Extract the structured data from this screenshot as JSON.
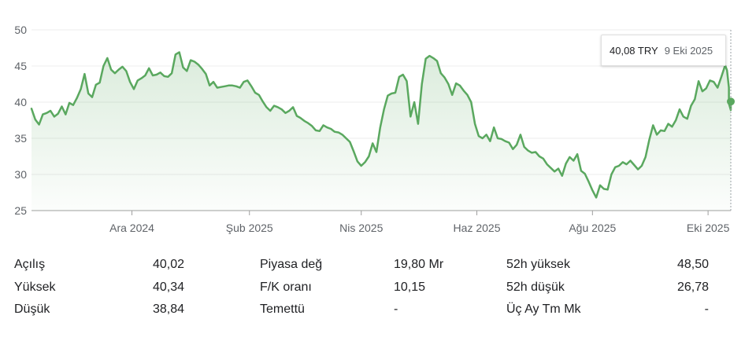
{
  "chart_data": {
    "type": "area",
    "currency": "TRY",
    "yticks": [
      25,
      30,
      35,
      40,
      45,
      50
    ],
    "ylim": [
      25,
      50
    ],
    "xticks": [
      "Ara 2024",
      "Şub 2025",
      "Nis 2025",
      "Haz 2025",
      "Ağu 2025",
      "Eki 2025"
    ],
    "xtick_dates": [
      "2024-12-01",
      "2025-02-01",
      "2025-04-01",
      "2025-06-01",
      "2025-08-01",
      "2025-10-01"
    ],
    "x_range": [
      "2024-10-09",
      "2025-10-13"
    ],
    "line_color": "#5aa85f",
    "grid": true,
    "series": [
      {
        "points": [
          [
            "2024-10-09",
            39.1
          ],
          [
            "2024-10-11",
            37.6
          ],
          [
            "2024-10-13",
            36.9
          ],
          [
            "2024-10-15",
            38.3
          ],
          [
            "2024-10-17",
            38.5
          ],
          [
            "2024-10-19",
            38.8
          ],
          [
            "2024-10-21",
            38.0
          ],
          [
            "2024-10-23",
            38.4
          ],
          [
            "2024-10-25",
            39.4
          ],
          [
            "2024-10-27",
            38.3
          ],
          [
            "2024-10-29",
            39.9
          ],
          [
            "2024-10-31",
            39.6
          ],
          [
            "2024-11-02",
            40.6
          ],
          [
            "2024-11-04",
            41.8
          ],
          [
            "2024-11-06",
            43.9
          ],
          [
            "2024-11-08",
            41.2
          ],
          [
            "2024-11-10",
            40.7
          ],
          [
            "2024-11-12",
            42.4
          ],
          [
            "2024-11-14",
            42.7
          ],
          [
            "2024-11-16",
            45.0
          ],
          [
            "2024-11-18",
            46.1
          ],
          [
            "2024-11-20",
            44.5
          ],
          [
            "2024-11-22",
            44.0
          ],
          [
            "2024-11-24",
            44.5
          ],
          [
            "2024-11-26",
            44.9
          ],
          [
            "2024-11-28",
            44.3
          ],
          [
            "2024-11-30",
            42.8
          ],
          [
            "2024-12-02",
            41.8
          ],
          [
            "2024-12-04",
            43.0
          ],
          [
            "2024-12-06",
            43.3
          ],
          [
            "2024-12-08",
            43.7
          ],
          [
            "2024-12-10",
            44.7
          ],
          [
            "2024-12-12",
            43.7
          ],
          [
            "2024-12-14",
            43.8
          ],
          [
            "2024-12-16",
            44.1
          ],
          [
            "2024-12-18",
            43.6
          ],
          [
            "2024-12-20",
            43.5
          ],
          [
            "2024-12-22",
            44.0
          ],
          [
            "2024-12-24",
            46.6
          ],
          [
            "2024-12-26",
            46.9
          ],
          [
            "2024-12-28",
            44.8
          ],
          [
            "2024-12-30",
            44.3
          ],
          [
            "2025-01-01",
            45.8
          ],
          [
            "2025-01-03",
            45.6
          ],
          [
            "2025-01-05",
            45.2
          ],
          [
            "2025-01-07",
            44.6
          ],
          [
            "2025-01-09",
            43.9
          ],
          [
            "2025-01-11",
            42.3
          ],
          [
            "2025-01-13",
            42.8
          ],
          [
            "2025-01-15",
            42.0
          ],
          [
            "2025-01-17",
            42.1
          ],
          [
            "2025-01-19",
            42.2
          ],
          [
            "2025-01-21",
            42.3
          ],
          [
            "2025-01-23",
            42.3
          ],
          [
            "2025-01-25",
            42.2
          ],
          [
            "2025-01-27",
            42.0
          ],
          [
            "2025-01-29",
            42.8
          ],
          [
            "2025-01-31",
            43.0
          ],
          [
            "2025-02-02",
            42.2
          ],
          [
            "2025-02-04",
            41.3
          ],
          [
            "2025-02-06",
            41.0
          ],
          [
            "2025-02-08",
            40.1
          ],
          [
            "2025-02-10",
            39.3
          ],
          [
            "2025-02-12",
            38.8
          ],
          [
            "2025-02-14",
            39.5
          ],
          [
            "2025-02-16",
            39.3
          ],
          [
            "2025-02-18",
            39.0
          ],
          [
            "2025-02-20",
            38.5
          ],
          [
            "2025-02-22",
            38.8
          ],
          [
            "2025-02-24",
            39.3
          ],
          [
            "2025-02-26",
            38.1
          ],
          [
            "2025-02-28",
            37.8
          ],
          [
            "2025-03-02",
            37.4
          ],
          [
            "2025-03-04",
            37.1
          ],
          [
            "2025-03-06",
            36.7
          ],
          [
            "2025-03-08",
            36.1
          ],
          [
            "2025-03-10",
            36.0
          ],
          [
            "2025-03-12",
            36.8
          ],
          [
            "2025-03-14",
            36.5
          ],
          [
            "2025-03-16",
            36.3
          ],
          [
            "2025-03-18",
            35.9
          ],
          [
            "2025-03-20",
            35.8
          ],
          [
            "2025-03-22",
            35.5
          ],
          [
            "2025-03-24",
            35.0
          ],
          [
            "2025-03-26",
            34.5
          ],
          [
            "2025-03-28",
            33.2
          ],
          [
            "2025-03-30",
            31.8
          ],
          [
            "2025-04-01",
            31.2
          ],
          [
            "2025-04-03",
            31.7
          ],
          [
            "2025-04-05",
            32.5
          ],
          [
            "2025-04-07",
            34.3
          ],
          [
            "2025-04-09",
            33.1
          ],
          [
            "2025-04-11",
            36.5
          ],
          [
            "2025-04-13",
            39.0
          ],
          [
            "2025-04-15",
            40.9
          ],
          [
            "2025-04-17",
            41.2
          ],
          [
            "2025-04-19",
            41.3
          ],
          [
            "2025-04-21",
            43.5
          ],
          [
            "2025-04-23",
            43.8
          ],
          [
            "2025-04-25",
            42.9
          ],
          [
            "2025-04-27",
            38.0
          ],
          [
            "2025-04-29",
            40.0
          ],
          [
            "2025-05-01",
            37.0
          ],
          [
            "2025-05-03",
            42.5
          ],
          [
            "2025-05-05",
            46.0
          ],
          [
            "2025-05-07",
            46.4
          ],
          [
            "2025-05-09",
            46.1
          ],
          [
            "2025-05-11",
            45.7
          ],
          [
            "2025-05-13",
            44.0
          ],
          [
            "2025-05-15",
            43.4
          ],
          [
            "2025-05-17",
            42.5
          ],
          [
            "2025-05-19",
            41.0
          ],
          [
            "2025-05-21",
            42.6
          ],
          [
            "2025-05-23",
            42.3
          ],
          [
            "2025-05-25",
            41.6
          ],
          [
            "2025-05-27",
            41.0
          ],
          [
            "2025-05-29",
            40.0
          ],
          [
            "2025-05-31",
            37.0
          ],
          [
            "2025-06-02",
            35.3
          ],
          [
            "2025-06-04",
            35.0
          ],
          [
            "2025-06-06",
            35.5
          ],
          [
            "2025-06-08",
            34.6
          ],
          [
            "2025-06-10",
            36.5
          ],
          [
            "2025-06-12",
            35.0
          ],
          [
            "2025-06-14",
            34.9
          ],
          [
            "2025-06-16",
            34.6
          ],
          [
            "2025-06-18",
            34.4
          ],
          [
            "2025-06-20",
            33.5
          ],
          [
            "2025-06-22",
            34.1
          ],
          [
            "2025-06-24",
            35.5
          ],
          [
            "2025-06-26",
            33.8
          ],
          [
            "2025-06-28",
            33.3
          ],
          [
            "2025-06-30",
            33.0
          ],
          [
            "2025-07-02",
            33.1
          ],
          [
            "2025-07-04",
            32.5
          ],
          [
            "2025-07-06",
            32.2
          ],
          [
            "2025-07-08",
            31.4
          ],
          [
            "2025-07-10",
            30.9
          ],
          [
            "2025-07-12",
            30.4
          ],
          [
            "2025-07-14",
            30.8
          ],
          [
            "2025-07-16",
            29.8
          ],
          [
            "2025-07-18",
            31.5
          ],
          [
            "2025-07-20",
            32.4
          ],
          [
            "2025-07-22",
            31.9
          ],
          [
            "2025-07-24",
            32.8
          ],
          [
            "2025-07-26",
            30.5
          ],
          [
            "2025-07-28",
            30.1
          ],
          [
            "2025-07-30",
            29.0
          ],
          [
            "2025-08-01",
            27.8
          ],
          [
            "2025-08-03",
            26.8
          ],
          [
            "2025-08-05",
            28.5
          ],
          [
            "2025-08-07",
            28.0
          ],
          [
            "2025-08-09",
            27.9
          ],
          [
            "2025-08-11",
            30.0
          ],
          [
            "2025-08-13",
            31.0
          ],
          [
            "2025-08-15",
            31.2
          ],
          [
            "2025-08-17",
            31.7
          ],
          [
            "2025-08-19",
            31.4
          ],
          [
            "2025-08-21",
            31.9
          ],
          [
            "2025-08-23",
            31.3
          ],
          [
            "2025-08-25",
            30.7
          ],
          [
            "2025-08-27",
            31.2
          ],
          [
            "2025-08-29",
            32.4
          ],
          [
            "2025-08-31",
            34.8
          ],
          [
            "2025-09-02",
            36.8
          ],
          [
            "2025-09-04",
            35.5
          ],
          [
            "2025-09-06",
            36.1
          ],
          [
            "2025-09-08",
            36.0
          ],
          [
            "2025-09-10",
            37.0
          ],
          [
            "2025-09-12",
            36.6
          ],
          [
            "2025-09-14",
            37.5
          ],
          [
            "2025-09-16",
            39.0
          ],
          [
            "2025-09-18",
            38.0
          ],
          [
            "2025-09-20",
            37.7
          ],
          [
            "2025-09-22",
            39.5
          ],
          [
            "2025-09-24",
            40.4
          ],
          [
            "2025-09-26",
            42.9
          ],
          [
            "2025-09-28",
            41.5
          ],
          [
            "2025-09-30",
            41.9
          ],
          [
            "2025-10-02",
            43.0
          ],
          [
            "2025-10-04",
            42.8
          ],
          [
            "2025-10-06",
            42.0
          ],
          [
            "2025-10-08",
            43.5
          ],
          [
            "2025-10-10",
            45.1
          ],
          [
            "2025-10-11",
            44.4
          ],
          [
            "2025-10-12",
            42.0
          ],
          [
            "2025-10-12",
            39.8
          ],
          [
            "2025-10-13",
            38.9
          ],
          [
            "2025-10-13",
            40.08
          ]
        ]
      }
    ],
    "tooltip": {
      "price": "40,08 TRY",
      "date": "9 Eki 2025"
    }
  },
  "stats": [
    {
      "label": "Açılış",
      "value": "40,02"
    },
    {
      "label": "Yüksek",
      "value": "40,34"
    },
    {
      "label": "Düşük",
      "value": "38,84"
    },
    {
      "label": "Piyasa değ",
      "value": "19,80 Mr"
    },
    {
      "label": "F/K oranı",
      "value": "10,15"
    },
    {
      "label": "Temettü",
      "value": "-"
    },
    {
      "label": "52h yüksek",
      "value": "48,50"
    },
    {
      "label": "52h düşük",
      "value": "26,78"
    },
    {
      "label": "Üç Ay Tm Mk",
      "value": "-"
    }
  ]
}
